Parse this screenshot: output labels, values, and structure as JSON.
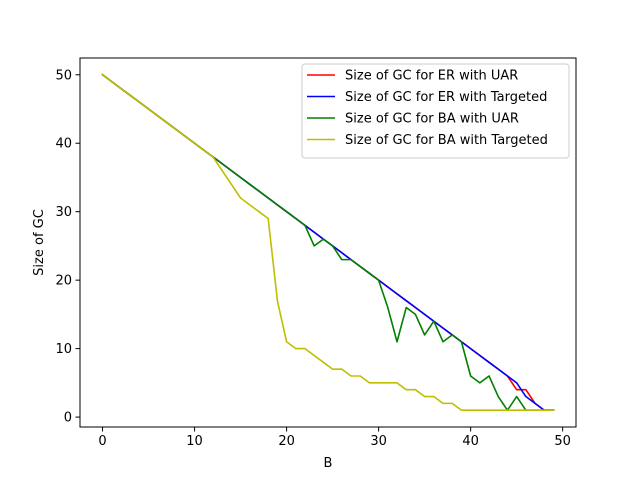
{
  "chart_data": {
    "type": "line",
    "title": "",
    "xlabel": "B",
    "ylabel": "Size of GC",
    "xlim": [
      -2.45,
      51.45
    ],
    "ylim": [
      -1.45,
      52.45
    ],
    "xticks": [
      0,
      10,
      20,
      30,
      40,
      50
    ],
    "yticks": [
      0,
      10,
      20,
      30,
      40,
      50
    ],
    "grid": false,
    "legend_position": "top-right",
    "x": [
      0,
      1,
      2,
      3,
      4,
      5,
      6,
      7,
      8,
      9,
      10,
      11,
      12,
      13,
      14,
      15,
      16,
      17,
      18,
      19,
      20,
      21,
      22,
      23,
      24,
      25,
      26,
      27,
      28,
      29,
      30,
      31,
      32,
      33,
      34,
      35,
      36,
      37,
      38,
      39,
      40,
      41,
      42,
      43,
      44,
      45,
      46,
      47,
      48,
      49
    ],
    "series": [
      {
        "name": "Size of GC for ER with UAR",
        "color": "#ff0000",
        "values": [
          50,
          49,
          48,
          47,
          46,
          45,
          44,
          43,
          42,
          41,
          40,
          39,
          38,
          37,
          36,
          35,
          34,
          33,
          32,
          31,
          30,
          29,
          28,
          27,
          26,
          25,
          24,
          23,
          22,
          21,
          20,
          19,
          18,
          17,
          16,
          15,
          14,
          13,
          12,
          11,
          10,
          9,
          8,
          7,
          6,
          4,
          4,
          2,
          1,
          1
        ]
      },
      {
        "name": "Size of GC for ER with Targeted",
        "color": "#0000ff",
        "values": [
          50,
          49,
          48,
          47,
          46,
          45,
          44,
          43,
          42,
          41,
          40,
          39,
          38,
          37,
          36,
          35,
          34,
          33,
          32,
          31,
          30,
          29,
          28,
          27,
          26,
          25,
          24,
          23,
          22,
          21,
          20,
          19,
          18,
          17,
          16,
          15,
          14,
          13,
          12,
          11,
          10,
          9,
          8,
          7,
          6,
          5,
          3,
          2,
          1,
          1
        ]
      },
      {
        "name": "Size of GC for BA with UAR",
        "color": "#008000",
        "values": [
          50,
          49,
          48,
          47,
          46,
          45,
          44,
          43,
          42,
          41,
          40,
          39,
          38,
          37,
          36,
          35,
          34,
          33,
          32,
          31,
          30,
          29,
          28,
          25,
          26,
          25,
          23,
          23,
          22,
          21,
          20,
          16,
          11,
          16,
          15,
          12,
          14,
          11,
          12,
          11,
          6,
          5,
          6,
          3,
          1,
          3,
          1,
          1,
          1,
          1
        ]
      },
      {
        "name": "Size of GC for BA with Targeted",
        "color": "#bfbf00",
        "values": [
          50,
          49,
          48,
          47,
          46,
          45,
          44,
          43,
          42,
          41,
          40,
          39,
          38,
          36,
          34,
          32,
          31,
          30,
          29,
          17,
          11,
          10,
          10,
          9,
          8,
          7,
          7,
          6,
          6,
          5,
          5,
          5,
          5,
          4,
          4,
          3,
          3,
          2,
          2,
          1,
          1,
          1,
          1,
          1,
          1,
          1,
          1,
          1,
          1,
          1
        ]
      }
    ]
  }
}
